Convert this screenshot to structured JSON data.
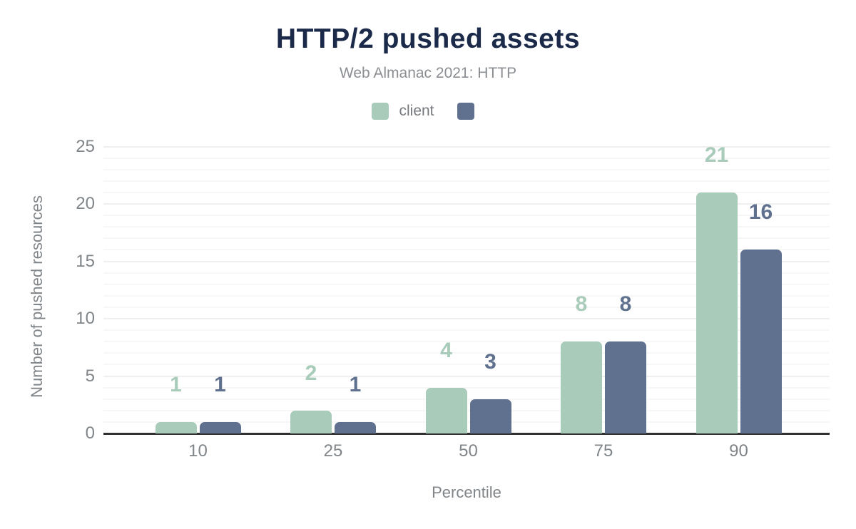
{
  "header": {
    "title": "HTTP/2 pushed assets",
    "subtitle": "Web Almanac 2021: HTTP"
  },
  "chart_data": {
    "type": "bar",
    "title": "HTTP/2 pushed assets",
    "subtitle": "Web Almanac 2021: HTTP",
    "categories": [
      "10",
      "25",
      "50",
      "75",
      "90"
    ],
    "series": [
      {
        "name": "client",
        "color": "#a8cbba",
        "values": [
          1,
          2,
          4,
          8,
          21
        ]
      },
      {
        "name": "",
        "color": "#5f718e",
        "values": [
          1,
          1,
          3,
          8,
          16
        ]
      }
    ],
    "xlabel": "Percentile",
    "ylabel": "Number of pushed resources",
    "ylim": [
      0,
      25
    ],
    "ytick_step": 5,
    "yticks": [
      0,
      5,
      10,
      15,
      20,
      25
    ],
    "grid": "horizontal minor every 1 unit, major every 5 units",
    "legend_position": "top-center",
    "value_labels": true
  },
  "colors": {
    "title_navy": "#1c2a4a",
    "subtitle_gray": "#8a8e92",
    "tick_gray": "#808589",
    "axis_line": "#303030",
    "gridline_minor": "#f7f7f7",
    "gridline_major": "#efefef"
  }
}
